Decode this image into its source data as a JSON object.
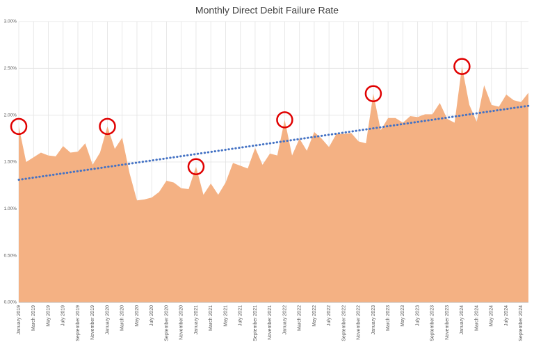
{
  "chart_data": {
    "type": "area",
    "title": "Monthly Direct Debit Failure Rate",
    "categories": [
      "January 2019",
      null,
      "March 2019",
      null,
      "May 2019",
      null,
      "July 2019",
      null,
      "September 2019",
      null,
      "November 2019",
      null,
      "January 2020",
      null,
      "March 2020",
      null,
      "May 2020",
      null,
      "July 2020",
      null,
      "September 2020",
      null,
      "November 2020",
      null,
      "January 2021",
      null,
      "March 2021",
      null,
      "May 2021",
      null,
      "July 2021",
      null,
      "September 2021",
      null,
      "November 2021",
      null,
      "January 2022",
      null,
      "March 2022",
      null,
      "May 2022",
      null,
      "July 2022",
      null,
      "September 2022",
      null,
      "November 2022",
      null,
      "January 2023",
      null,
      "March 2023",
      null,
      "May 2023",
      null,
      "July 2023",
      null,
      "September 2023",
      null,
      "November 2023",
      null,
      "January 2024",
      null,
      "March 2024",
      null,
      "May 2024",
      null,
      "July 2024",
      null,
      "September 2024",
      null
    ],
    "values": [
      1.88,
      1.5,
      1.55,
      1.6,
      1.57,
      1.56,
      1.67,
      1.6,
      1.61,
      1.7,
      1.47,
      1.6,
      1.88,
      1.64,
      1.76,
      1.38,
      1.09,
      1.1,
      1.12,
      1.18,
      1.3,
      1.28,
      1.22,
      1.21,
      1.45,
      1.15,
      1.27,
      1.15,
      1.28,
      1.49,
      1.46,
      1.43,
      1.65,
      1.47,
      1.59,
      1.57,
      1.95,
      1.57,
      1.75,
      1.62,
      1.82,
      1.75,
      1.66,
      1.8,
      1.8,
      1.81,
      1.72,
      1.7,
      2.23,
      1.84,
      1.97,
      1.97,
      1.92,
      1.99,
      1.98,
      2.01,
      2.01,
      2.13,
      1.96,
      1.92,
      2.52,
      2.11,
      1.93,
      2.32,
      2.11,
      2.09,
      2.22,
      2.16,
      2.14,
      2.24
    ],
    "color": "#f4b183",
    "trendline": {
      "start": 1.31,
      "end": 2.1,
      "color": "#4472c4"
    },
    "highlight_indices": [
      0,
      12,
      24,
      36,
      48,
      60
    ],
    "highlight_color": "#e00000",
    "ylim": [
      0,
      3
    ],
    "yticks": [
      {
        "value": 0,
        "label": "0.00%"
      },
      {
        "value": 0.5,
        "label": "0.50%"
      },
      {
        "value": 1,
        "label": "1.00%"
      },
      {
        "value": 1.5,
        "label": "1.50%"
      },
      {
        "value": 2,
        "label": "2.00%"
      },
      {
        "value": 2.5,
        "label": "2.50%"
      },
      {
        "value": 3,
        "label": "3.00%"
      }
    ],
    "grid": true
  }
}
